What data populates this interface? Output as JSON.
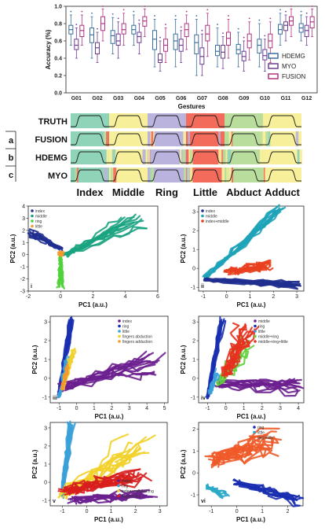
{
  "chart_data": [
    {
      "type": "box",
      "ylabel": "Accuracy (%)",
      "xlabel": "Gestures",
      "ylim": [
        0.0,
        1.0
      ],
      "yticks": [
        "0.0",
        "0.2",
        "0.4",
        "0.6",
        "0.8",
        "1.0"
      ],
      "categories": [
        "G01",
        "G02",
        "G03",
        "G04",
        "G05",
        "G06",
        "G07",
        "G08",
        "G09",
        "G10",
        "G11",
        "G12"
      ],
      "legend_position": "right",
      "series": [
        {
          "name": "HDEMG",
          "color": "#3a6f9e",
          "medians": [
            0.73,
            0.67,
            0.66,
            0.73,
            0.62,
            0.6,
            0.58,
            0.48,
            0.5,
            0.55,
            0.73,
            0.75
          ],
          "q1": [
            0.68,
            0.58,
            0.57,
            0.68,
            0.5,
            0.5,
            0.45,
            0.43,
            0.45,
            0.46,
            0.68,
            0.7
          ],
          "q3": [
            0.78,
            0.75,
            0.72,
            0.78,
            0.72,
            0.68,
            0.67,
            0.55,
            0.56,
            0.62,
            0.79,
            0.8
          ],
          "lo": [
            0.55,
            0.4,
            0.45,
            0.55,
            0.3,
            0.3,
            0.2,
            0.3,
            0.3,
            0.3,
            0.55,
            0.6
          ],
          "hi": [
            0.9,
            0.88,
            0.87,
            0.9,
            0.85,
            0.85,
            0.85,
            0.75,
            0.7,
            0.8,
            0.92,
            0.9
          ]
        },
        {
          "name": "MYO",
          "color": "#6d3d94",
          "medians": [
            0.55,
            0.52,
            0.6,
            0.65,
            0.38,
            0.55,
            0.42,
            0.47,
            0.42,
            0.43,
            0.78,
            0.72
          ],
          "q1": [
            0.5,
            0.45,
            0.55,
            0.58,
            0.35,
            0.48,
            0.33,
            0.4,
            0.37,
            0.38,
            0.72,
            0.65
          ],
          "q3": [
            0.62,
            0.58,
            0.68,
            0.7,
            0.45,
            0.62,
            0.52,
            0.55,
            0.48,
            0.5,
            0.82,
            0.78
          ],
          "lo": [
            0.4,
            0.35,
            0.4,
            0.45,
            0.25,
            0.35,
            0.2,
            0.28,
            0.25,
            0.25,
            0.6,
            0.55
          ],
          "hi": [
            0.75,
            0.7,
            0.82,
            0.8,
            0.6,
            0.72,
            0.68,
            0.65,
            0.6,
            0.62,
            0.9,
            0.88
          ]
        },
        {
          "name": "FUSION",
          "color": "#b0357e",
          "medians": [
            0.72,
            0.8,
            0.73,
            0.83,
            0.55,
            0.73,
            0.68,
            0.63,
            0.6,
            0.6,
            0.83,
            0.82
          ],
          "q1": [
            0.65,
            0.72,
            0.68,
            0.77,
            0.48,
            0.65,
            0.6,
            0.55,
            0.52,
            0.52,
            0.78,
            0.75
          ],
          "q3": [
            0.78,
            0.88,
            0.8,
            0.88,
            0.62,
            0.8,
            0.78,
            0.7,
            0.68,
            0.68,
            0.88,
            0.88
          ],
          "lo": [
            0.55,
            0.6,
            0.55,
            0.65,
            0.35,
            0.5,
            0.42,
            0.4,
            0.38,
            0.35,
            0.65,
            0.65
          ],
          "hi": [
            0.9,
            0.97,
            0.92,
            0.97,
            0.75,
            0.9,
            0.92,
            0.85,
            0.82,
            0.82,
            0.97,
            0.97
          ]
        }
      ]
    },
    {
      "type": "heatmap",
      "rows": [
        "TRUTH",
        "FUSION",
        "HDEMG",
        "MYO"
      ],
      "side_labels": [
        "a",
        "b",
        "c"
      ],
      "categories": [
        "Index",
        "Middle",
        "Ring",
        "Little",
        "Abduct",
        "Adduct"
      ],
      "category_colors": [
        "#8fd3b8",
        "#f7ef9a",
        "#b9b3dd",
        "#f26b5b",
        "#b9dd9c",
        "#f7ef9a"
      ]
    },
    {
      "type": "scatter",
      "panel": "i",
      "xlabel": "PC1 (a.u.)",
      "ylabel": "PC2 (a.u.)",
      "xlim": [
        -2,
        6
      ],
      "ylim": [
        -3,
        4
      ],
      "xticks": [
        "-2",
        "0",
        "2",
        "4",
        "6"
      ],
      "yticks": [
        "-3",
        "-2",
        "-1",
        "0",
        "1",
        "2",
        "3",
        "4"
      ],
      "legend_position": "top-left",
      "series": [
        {
          "name": "index",
          "color": "#1f2f8f"
        },
        {
          "name": "middle",
          "color": "#1aa37f"
        },
        {
          "name": "ring",
          "color": "#4fd03a"
        },
        {
          "name": "little",
          "color": "#f39a2c"
        }
      ]
    },
    {
      "type": "scatter",
      "panel": "ii",
      "xlabel": "PC1 (a.u.)",
      "ylabel": "PC2 (a.u.)",
      "xlim": [
        -1.2,
        3.3
      ],
      "ylim": [
        -1.2,
        3.3
      ],
      "xticks": [
        "-1",
        "0",
        "1",
        "2",
        "3"
      ],
      "yticks": [
        "-1",
        "0",
        "1",
        "2",
        "3"
      ],
      "legend_position": "top-left",
      "series": [
        {
          "name": "index",
          "color": "#1f2f8f"
        },
        {
          "name": "middle",
          "color": "#1ea3b8"
        },
        {
          "name": "index+middle",
          "color": "#e8401e"
        }
      ]
    },
    {
      "type": "scatter",
      "panel": "iii",
      "xlabel": "PC1 (a.u.)",
      "ylabel": "PC2 (a.u.)",
      "xlim": [
        -1.5,
        5.2
      ],
      "ylim": [
        -1.3,
        3.3
      ],
      "xticks": [
        "-1",
        "0",
        "1",
        "2",
        "3",
        "4",
        "5"
      ],
      "yticks": [
        "-1",
        "0",
        "1",
        "2",
        "3"
      ],
      "legend_position": "top-right",
      "series": [
        {
          "name": "index",
          "color": "#6b1f8f"
        },
        {
          "name": "ring",
          "color": "#1a2fb0"
        },
        {
          "name": "little",
          "color": "#3aa0d8"
        },
        {
          "name": "fingers abduction",
          "color": "#f2d12a"
        },
        {
          "name": "fingers adduction",
          "color": "#f39a2c"
        }
      ]
    },
    {
      "type": "scatter",
      "panel": "iv",
      "xlabel": "PC1 (a.u.)",
      "ylabel": "PC2 (a.u.)",
      "xlim": [
        -1.5,
        4.3
      ],
      "ylim": [
        -1.3,
        3.3
      ],
      "xticks": [
        "-1",
        "0",
        "1",
        "2",
        "3",
        "4"
      ],
      "yticks": [
        "-1",
        "0",
        "1",
        "2",
        "3"
      ],
      "legend_position": "top-right",
      "series": [
        {
          "name": "middle",
          "color": "#6b1f8f"
        },
        {
          "name": "ring",
          "color": "#1a2fb0"
        },
        {
          "name": "little",
          "color": "#3aa0d8"
        },
        {
          "name": "middle+ring",
          "color": "#5fd03a"
        },
        {
          "name": "middle+ring+little",
          "color": "#e8301e"
        }
      ]
    },
    {
      "type": "scatter",
      "panel": "v",
      "xlabel": "PC1 (a.u.)",
      "ylabel": "PC2 (a.u.)",
      "xlim": [
        -1.5,
        3.3
      ],
      "ylim": [
        -1.3,
        3.3
      ],
      "xticks": [
        "-1",
        "0",
        "1",
        "2",
        "3"
      ],
      "yticks": [
        "-1",
        "0",
        "1",
        "2",
        "3"
      ],
      "legend_position": "bottom-right",
      "series": [
        {
          "name": "index",
          "color": "#6b1f8f"
        },
        {
          "name": "ring",
          "color": "#3aa0d8"
        },
        {
          "name": "index+middle+ring",
          "color": "#f2d12a"
        },
        {
          "name": "fingers flex",
          "color": "#d81e1e"
        }
      ]
    },
    {
      "type": "scatter",
      "panel": "vi",
      "xlabel": "PC1 (a.u.)",
      "ylabel": "PC2 (a.u.)",
      "xlim": [
        -1.5,
        2.6
      ],
      "ylim": [
        -1.5,
        2.3
      ],
      "xticks": [
        "-1",
        "0",
        "1",
        "2"
      ],
      "yticks": [
        "-1",
        "0",
        "1",
        "2"
      ],
      "legend_position": "top-right",
      "series": [
        {
          "name": "ring",
          "color": "#1a2fb0"
        },
        {
          "name": "little",
          "color": "#2aa8c8"
        },
        {
          "name": "ring+little",
          "color": "#f05a28"
        }
      ]
    }
  ]
}
